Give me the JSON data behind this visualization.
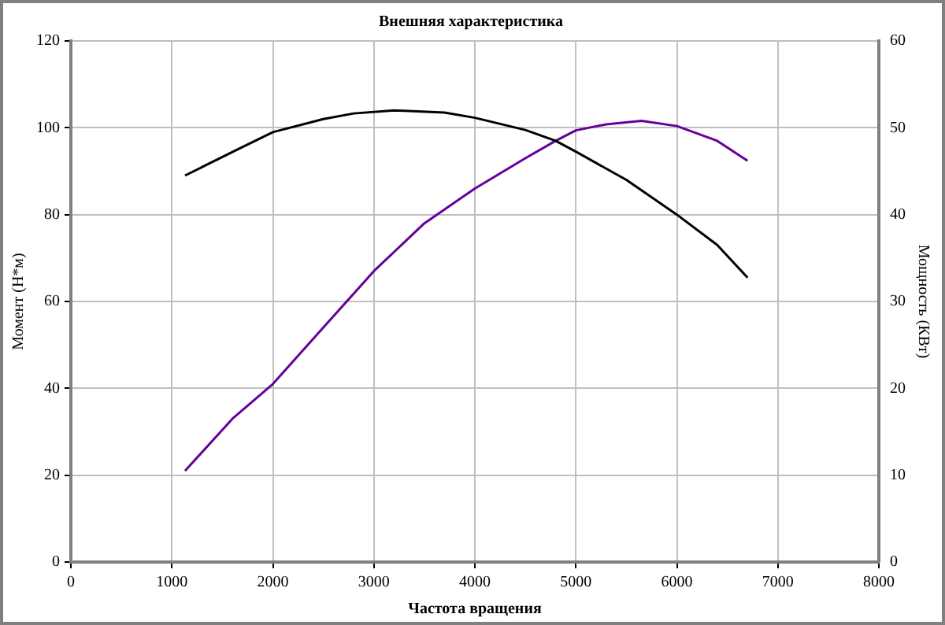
{
  "chart_data": {
    "type": "line",
    "title": "Внешняя характеристика",
    "xlabel": "Частота вращения",
    "ylabel": "Момент (Н*м)",
    "y2label": "Мощность (КВт)",
    "xlim": [
      0,
      8000
    ],
    "xticks": [
      0,
      1000,
      2000,
      3000,
      4000,
      5000,
      6000,
      7000,
      8000
    ],
    "ylim": [
      0,
      120
    ],
    "yticks": [
      0,
      20,
      40,
      60,
      80,
      100,
      120
    ],
    "y2lim": [
      0,
      60
    ],
    "y2ticks": [
      0,
      10,
      20,
      30,
      40,
      50,
      60
    ],
    "grid": true,
    "legend": false,
    "marker": "none",
    "line_style": "solid",
    "series": [
      {
        "color": "#000000",
        "x": [
          1130,
          1650,
          2000,
          2500,
          2800,
          3200,
          3700,
          4000,
          4500,
          4800,
          5000,
          5500,
          6000,
          6400,
          6700
        ],
        "values": [
          89,
          95,
          99,
          102,
          103.3,
          104,
          103.5,
          102.3,
          99.5,
          97,
          94.5,
          88,
          80,
          73,
          65.5
        ]
      },
      {
        "color": "#660099",
        "axis": "y2",
        "x": [
          1130,
          1600,
          2000,
          2500,
          3000,
          3500,
          4000,
          4500,
          4800,
          5000,
          5300,
          5650,
          6000,
          6400,
          6700
        ],
        "values": [
          10.5,
          16.5,
          20.5,
          27,
          33.5,
          39,
          43,
          46.5,
          48.5,
          49.7,
          50.4,
          50.8,
          50.2,
          48.5,
          46.2
        ]
      }
    ]
  }
}
